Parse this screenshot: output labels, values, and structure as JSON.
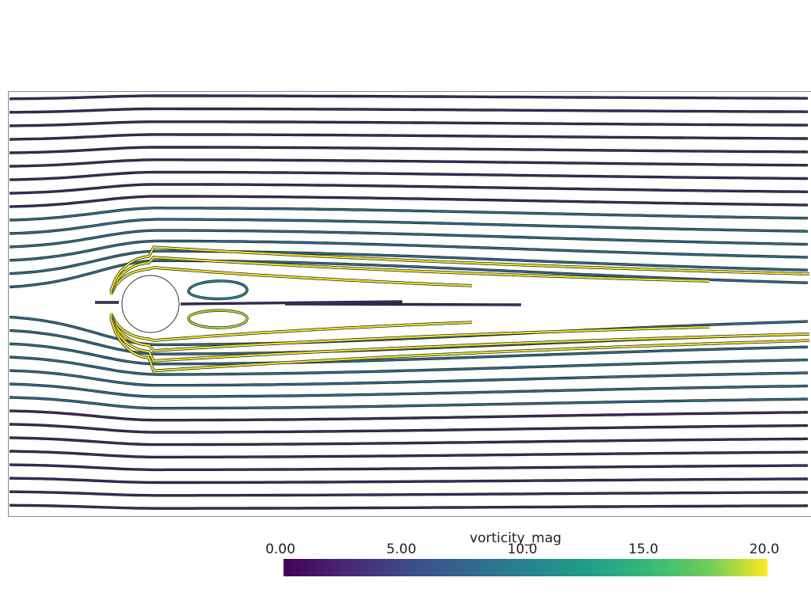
{
  "colorbar": {
    "title": "vorticity_mag",
    "lim": [
      0,
      20
    ],
    "ticks": [
      {
        "value": 0,
        "label": "0.00"
      },
      {
        "value": 5,
        "label": "5.00"
      },
      {
        "value": 10,
        "label": "10.0"
      },
      {
        "value": 15,
        "label": "15.0"
      },
      {
        "value": 20,
        "label": "20.0"
      }
    ]
  }
}
